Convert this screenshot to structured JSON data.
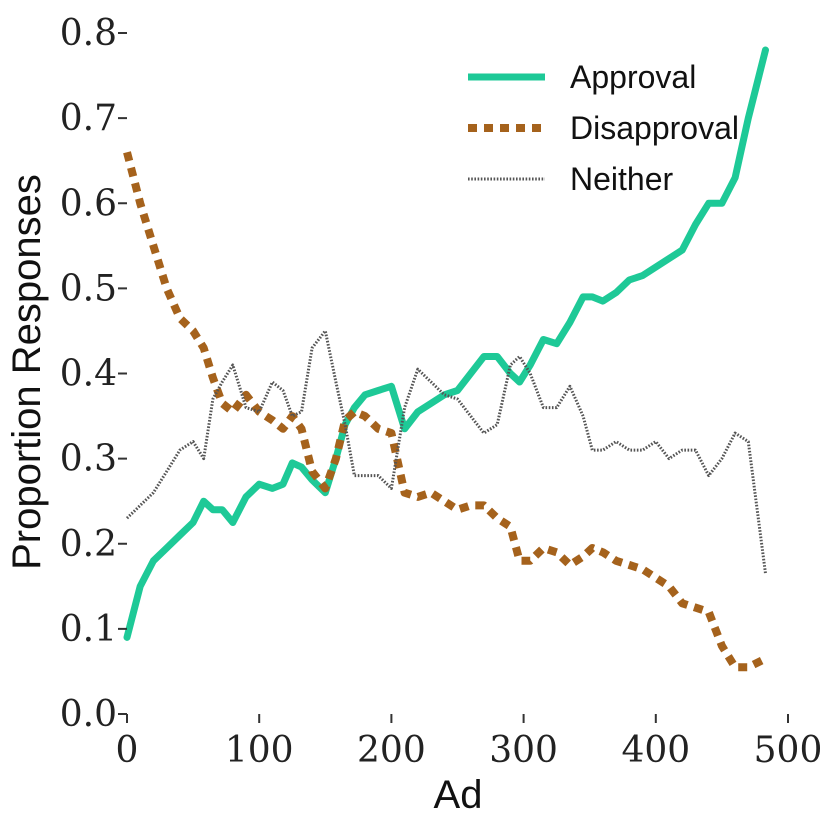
{
  "chart_data": {
    "type": "line",
    "xlabel": "Ad",
    "ylabel": "Proportion Responses",
    "xlim": [
      0,
      500
    ],
    "ylim": [
      0.0,
      0.8
    ],
    "xticks": [
      "0",
      "100",
      "200",
      "300",
      "400",
      "500"
    ],
    "yticks": [
      "0.0",
      "0.1",
      "0.2",
      "0.3",
      "0.4",
      "0.5",
      "0.6",
      "0.7",
      "0.8"
    ],
    "grid": false,
    "legend_position": "top-right",
    "series": [
      {
        "name": "Approval",
        "color": "#1ec997",
        "style": "solid",
        "x": [
          0,
          10,
          20,
          30,
          40,
          50,
          58,
          65,
          72,
          80,
          90,
          100,
          110,
          118,
          125,
          132,
          140,
          150,
          158,
          165,
          172,
          180,
          190,
          200,
          210,
          220,
          230,
          240,
          250,
          260,
          270,
          280,
          290,
          297,
          305,
          315,
          325,
          335,
          345,
          352,
          360,
          370,
          380,
          390,
          400,
          410,
          420,
          430,
          440,
          450,
          460,
          470,
          483
        ],
        "values": [
          0.09,
          0.15,
          0.18,
          0.195,
          0.21,
          0.225,
          0.25,
          0.24,
          0.24,
          0.225,
          0.255,
          0.27,
          0.265,
          0.27,
          0.295,
          0.29,
          0.275,
          0.26,
          0.3,
          0.34,
          0.36,
          0.375,
          0.38,
          0.385,
          0.335,
          0.355,
          0.365,
          0.375,
          0.38,
          0.4,
          0.42,
          0.42,
          0.4,
          0.39,
          0.41,
          0.44,
          0.435,
          0.46,
          0.49,
          0.49,
          0.485,
          0.495,
          0.51,
          0.515,
          0.525,
          0.535,
          0.545,
          0.575,
          0.6,
          0.6,
          0.63,
          0.7,
          0.78
        ]
      },
      {
        "name": "Disapproval",
        "color": "#a5621c",
        "style": "dashed",
        "x": [
          0,
          10,
          20,
          30,
          40,
          50,
          58,
          65,
          72,
          80,
          90,
          100,
          110,
          118,
          125,
          132,
          140,
          150,
          158,
          165,
          172,
          180,
          190,
          200,
          210,
          220,
          230,
          240,
          250,
          260,
          270,
          280,
          290,
          297,
          305,
          315,
          325,
          335,
          345,
          352,
          360,
          370,
          380,
          390,
          400,
          410,
          420,
          430,
          440,
          450,
          460,
          470,
          483
        ],
        "values": [
          0.66,
          0.6,
          0.55,
          0.5,
          0.465,
          0.45,
          0.43,
          0.395,
          0.365,
          0.355,
          0.375,
          0.355,
          0.345,
          0.335,
          0.35,
          0.335,
          0.285,
          0.265,
          0.3,
          0.345,
          0.355,
          0.35,
          0.335,
          0.33,
          0.26,
          0.255,
          0.26,
          0.25,
          0.24,
          0.245,
          0.245,
          0.23,
          0.22,
          0.18,
          0.18,
          0.195,
          0.19,
          0.175,
          0.185,
          0.195,
          0.19,
          0.18,
          0.175,
          0.17,
          0.16,
          0.15,
          0.13,
          0.125,
          0.12,
          0.08,
          0.055,
          0.055,
          0.065
        ]
      },
      {
        "name": "Neither",
        "color": "#555555",
        "style": "dotted",
        "x": [
          0,
          10,
          20,
          30,
          40,
          50,
          58,
          65,
          72,
          80,
          90,
          100,
          110,
          118,
          125,
          132,
          140,
          150,
          158,
          165,
          172,
          180,
          190,
          200,
          210,
          220,
          230,
          240,
          250,
          260,
          270,
          280,
          290,
          297,
          305,
          315,
          325,
          335,
          345,
          352,
          360,
          370,
          380,
          390,
          400,
          410,
          420,
          430,
          440,
          450,
          460,
          470,
          483
        ],
        "values": [
          0.23,
          0.245,
          0.26,
          0.285,
          0.31,
          0.32,
          0.3,
          0.37,
          0.39,
          0.41,
          0.36,
          0.355,
          0.39,
          0.38,
          0.35,
          0.355,
          0.43,
          0.45,
          0.39,
          0.34,
          0.28,
          0.28,
          0.28,
          0.265,
          0.36,
          0.405,
          0.39,
          0.375,
          0.37,
          0.35,
          0.33,
          0.34,
          0.41,
          0.42,
          0.4,
          0.36,
          0.36,
          0.385,
          0.35,
          0.31,
          0.31,
          0.32,
          0.31,
          0.31,
          0.32,
          0.3,
          0.31,
          0.31,
          0.28,
          0.3,
          0.33,
          0.32,
          0.165
        ]
      }
    ]
  }
}
